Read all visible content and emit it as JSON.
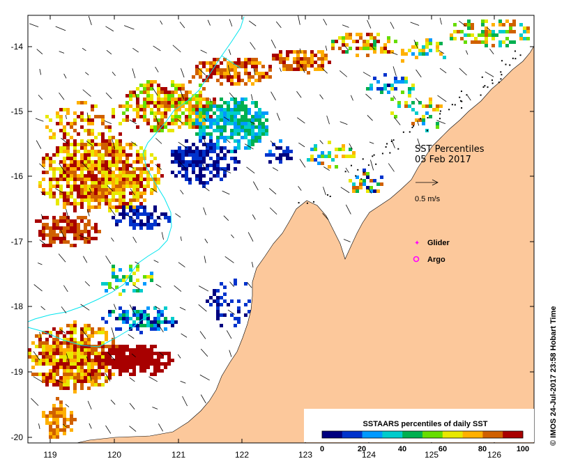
{
  "title": {
    "line1": "SST Percentiles",
    "line2": "05 Feb 2017"
  },
  "scale_arrow_label": "0.5 m/s",
  "markers": {
    "glider_label": "Glider",
    "argo_label": "Argo"
  },
  "credit": "© IMOS 24-Jul-2017 23:58 Hobart Time",
  "colorbar": {
    "title": "SSTAARS percentiles of daily SST",
    "ticks": [
      "0",
      "20",
      "40",
      "60",
      "80",
      "100"
    ],
    "colors": [
      "#00007f",
      "#0033cc",
      "#0099ff",
      "#00cccc",
      "#00b050",
      "#66dd00",
      "#e8e800",
      "#ffb000",
      "#d06000",
      "#a80000"
    ]
  },
  "map": {
    "x_ticks": [
      "119",
      "120",
      "121",
      "122",
      "123",
      "124",
      "125",
      "126"
    ],
    "y_ticks": [
      "-14",
      "-15",
      "-16",
      "-17",
      "-18",
      "-19",
      "-20"
    ],
    "land_color": "#fcc89b",
    "contour_color": "#00e5ee",
    "glider_color": "#ff00ff",
    "argo_color": "#ff00ff"
  }
}
